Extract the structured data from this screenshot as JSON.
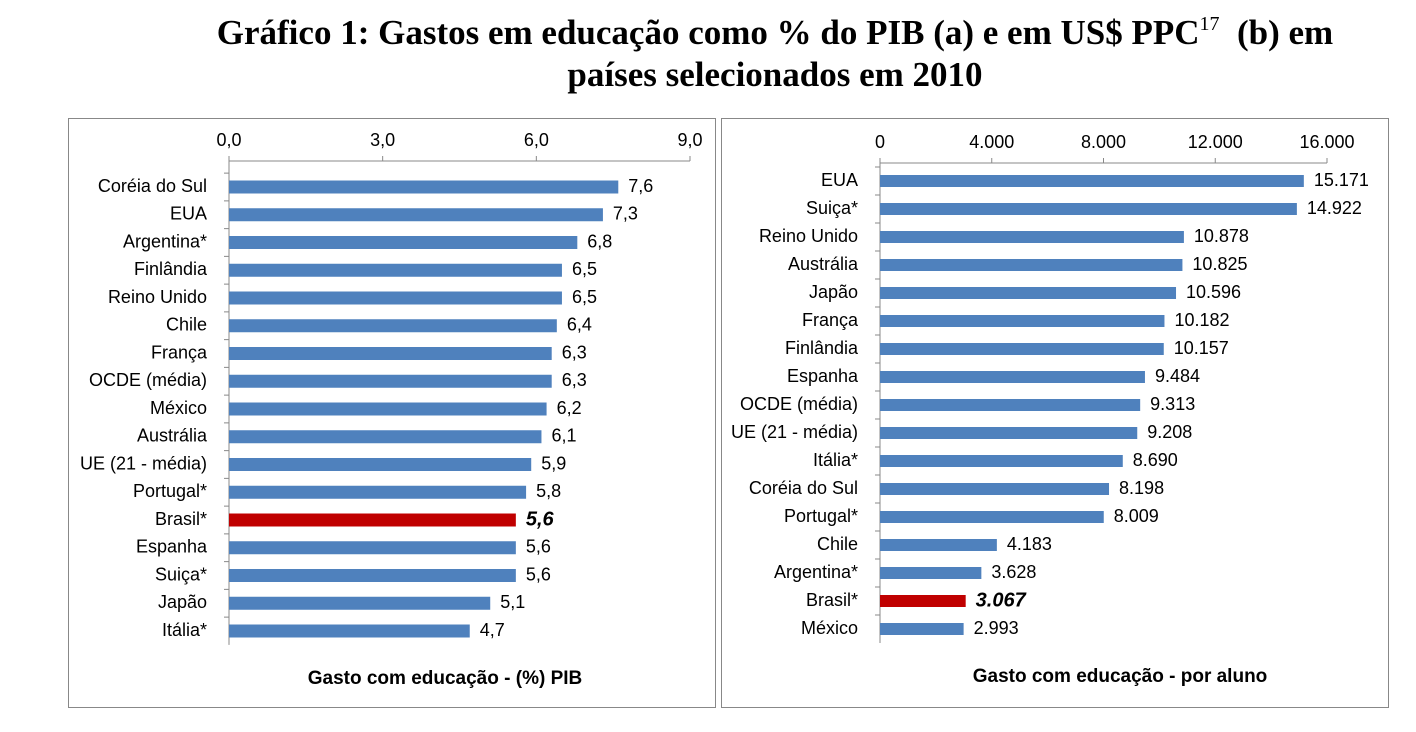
{
  "title": "Gráfico 1: Gastos em educação como % do PIB (a) e em US$ PPC",
  "title_superscript": "17",
  "title_rest": "(b) em países selecionados em 2010",
  "chart_data": [
    {
      "type": "bar",
      "orientation": "horizontal",
      "xlabel": "Gasto com educação - (%) PIB",
      "categories": [
        "Coréia do Sul",
        "EUA",
        "Argentina*",
        "Finlândia",
        "Reino Unido",
        "Chile",
        "França",
        "OCDE (média)",
        "México",
        "Austrália",
        "UE (21 - média)",
        "Portugal*",
        "Brasil*",
        "Espanha",
        "Suiça*",
        "Japão",
        "Itália*"
      ],
      "values": [
        7.6,
        7.3,
        6.8,
        6.5,
        6.5,
        6.4,
        6.3,
        6.3,
        6.2,
        6.1,
        5.9,
        5.8,
        5.6,
        5.6,
        5.6,
        5.1,
        4.7
      ],
      "value_labels": [
        "7,6",
        "7,3",
        "6,8",
        "6,5",
        "6,5",
        "6,4",
        "6,3",
        "6,3",
        "6,2",
        "6,1",
        "5,9",
        "5,8",
        "5,6",
        "5,6",
        "5,6",
        "5,1",
        "4,7"
      ],
      "colors": [
        "#4f81bd",
        "#4f81bd",
        "#4f81bd",
        "#4f81bd",
        "#4f81bd",
        "#4f81bd",
        "#4f81bd",
        "#4f81bd",
        "#4f81bd",
        "#4f81bd",
        "#4f81bd",
        "#4f81bd",
        "#c00000",
        "#4f81bd",
        "#4f81bd",
        "#4f81bd",
        "#4f81bd"
      ],
      "xlim": [
        0,
        9
      ],
      "xticks": [
        {
          "value": 0,
          "label": "0,0"
        },
        {
          "value": 3,
          "label": "3,0"
        },
        {
          "value": 6,
          "label": "6,0"
        },
        {
          "value": 9,
          "label": "9,0"
        }
      ]
    },
    {
      "type": "bar",
      "orientation": "horizontal",
      "xlabel": "Gasto com educação - por aluno",
      "categories": [
        "EUA",
        "Suiça*",
        "Reino Unido",
        "Austrália",
        "Japão",
        "França",
        "Finlândia",
        "Espanha",
        "OCDE (média)",
        "UE (21 - média)",
        "Itália*",
        "Coréia do Sul",
        "Portugal*",
        "Chile",
        "Argentina*",
        "Brasil*",
        "México"
      ],
      "values": [
        15171,
        14922,
        10878,
        10825,
        10596,
        10182,
        10157,
        9484,
        9313,
        9208,
        8690,
        8198,
        8009,
        4183,
        3628,
        3067,
        2993
      ],
      "value_labels": [
        "15.171",
        "14.922",
        "10.878",
        "10.825",
        "10.596",
        "10.182",
        "10.157",
        "9.484",
        "9.313",
        "9.208",
        "8.690",
        "8.198",
        "8.009",
        "4.183",
        "3.628",
        "3.067",
        "2.993"
      ],
      "colors": [
        "#4f81bd",
        "#4f81bd",
        "#4f81bd",
        "#4f81bd",
        "#4f81bd",
        "#4f81bd",
        "#4f81bd",
        "#4f81bd",
        "#4f81bd",
        "#4f81bd",
        "#4f81bd",
        "#4f81bd",
        "#4f81bd",
        "#4f81bd",
        "#4f81bd",
        "#c00000",
        "#4f81bd"
      ],
      "xlim": [
        0,
        16000
      ],
      "xticks": [
        0,
        {
          "value": 4000,
          "label": "4.000"
        },
        {
          "value": 8000,
          "label": "8.000"
        },
        {
          "value": 12000,
          "label": "12.000"
        },
        {
          "value": 16000,
          "label": "16.000"
        }
      ]
    }
  ]
}
